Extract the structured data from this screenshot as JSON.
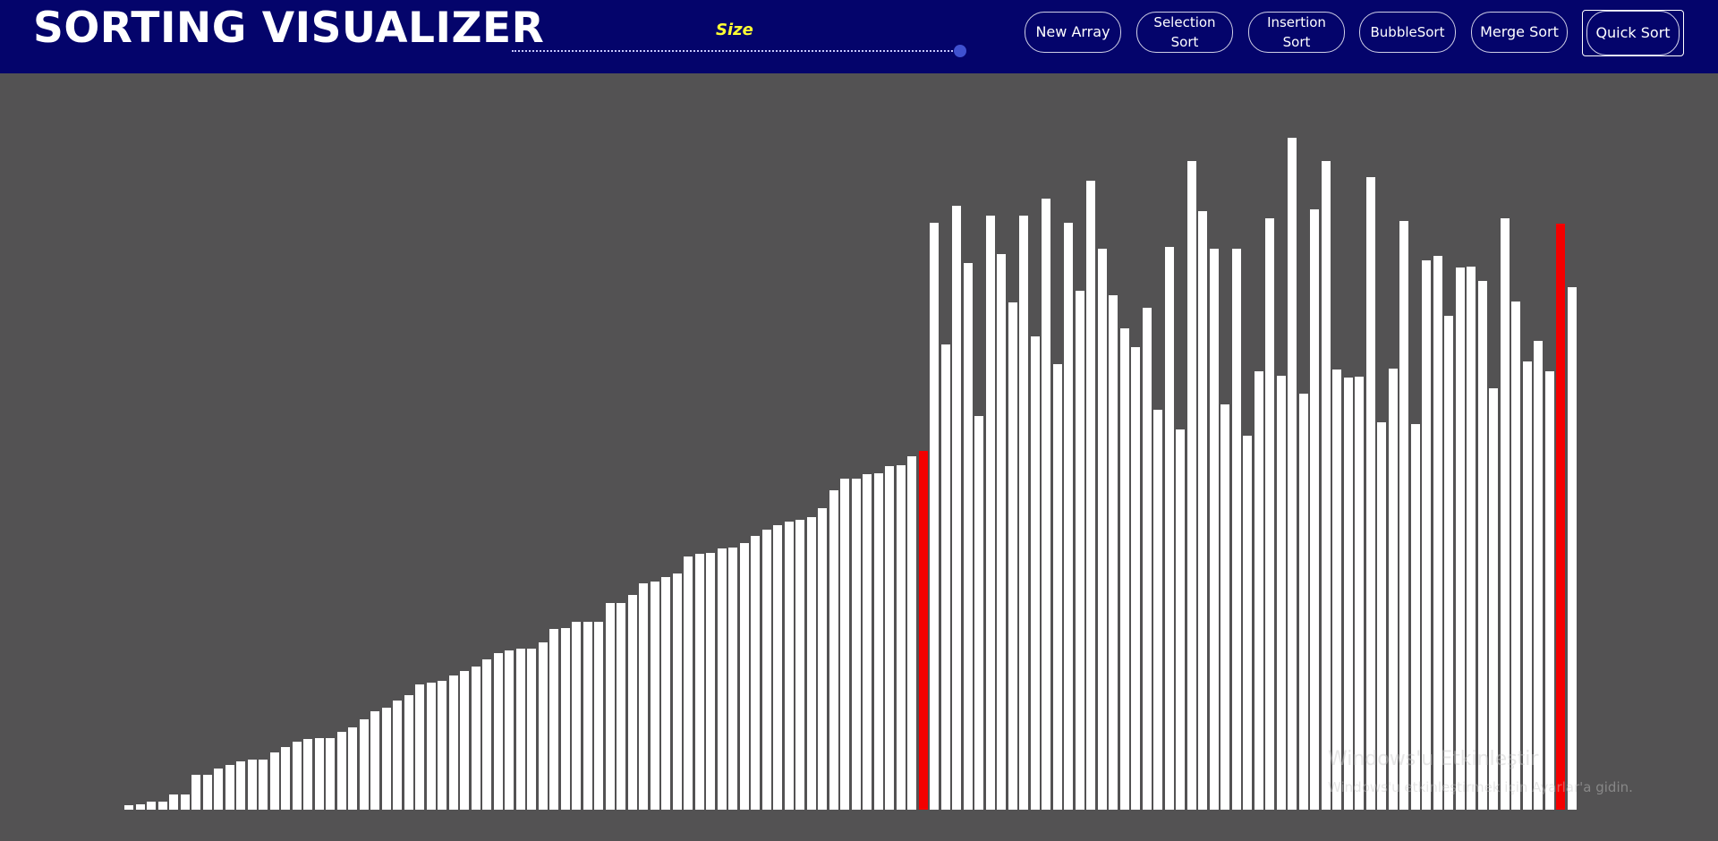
{
  "header": {
    "title": "SORTING VISUALIZER",
    "size_label": "Size",
    "size_value_fraction": 1.0,
    "buttons": {
      "new_array": "New Array",
      "selection_sort": "Selection Sort",
      "insertion_sort": "Insertion Sort",
      "bubble_sort": "BubbleSort",
      "merge_sort": "Merge Sort",
      "quick_sort": "Quick Sort"
    }
  },
  "watermark": {
    "line1": "Windows'u Etkinleştir",
    "line2": "Windows'u etkinleştirmek için Ayarlar'a gidin."
  },
  "colors": {
    "header_bg": "#04046b",
    "canvas_bg": "#535253",
    "bar": "#ffffff",
    "bar_active": "#f40000",
    "size_label": "#ffff33"
  },
  "chart_data": {
    "type": "bar",
    "values": [
      5,
      6,
      9,
      9,
      17,
      17,
      39,
      39,
      46,
      50,
      54,
      56,
      56,
      64,
      70,
      76,
      79,
      80,
      80,
      87,
      92,
      101,
      110,
      114,
      122,
      128,
      140,
      142,
      144,
      150,
      155,
      160,
      168,
      175,
      178,
      180,
      180,
      187,
      202,
      203,
      210,
      210,
      210,
      231,
      231,
      240,
      253,
      255,
      260,
      264,
      283,
      286,
      287,
      292,
      293,
      298,
      306,
      313,
      318,
      322,
      324,
      327,
      337,
      357,
      370,
      370,
      375,
      376,
      384,
      385,
      395,
      401,
      656,
      520,
      675,
      611,
      440,
      664,
      621,
      567,
      664,
      529,
      683,
      498,
      656,
      580,
      703,
      627,
      575,
      538,
      517,
      561,
      447,
      629,
      425,
      725,
      669,
      627,
      453,
      627,
      418,
      490,
      661,
      485,
      751,
      465,
      671,
      725,
      492,
      483,
      484,
      707,
      433,
      493,
      658,
      431,
      614,
      619,
      552,
      606,
      607,
      591,
      471,
      661,
      568,
      501,
      524,
      490,
      655,
      584
    ],
    "active_indices": [
      71,
      128
    ]
  }
}
